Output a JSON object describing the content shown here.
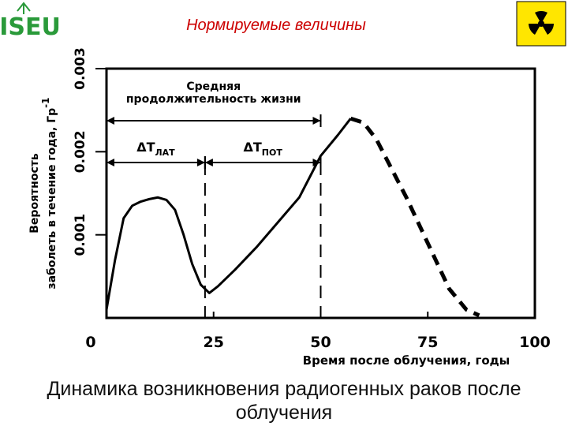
{
  "header": {
    "title": "Нормируемые величины",
    "logo": "ISEU"
  },
  "chart_data": {
    "type": "line",
    "x": [
      0,
      2,
      4,
      6,
      8,
      10,
      12,
      14,
      16,
      18,
      20,
      22,
      24,
      26,
      30,
      35,
      40,
      45,
      50,
      54,
      57,
      60,
      63,
      66,
      70,
      75,
      80,
      84,
      87
    ],
    "series": [
      {
        "style": "solid",
        "color": "#000000",
        "values": [
          0.0001,
          0.0007,
          0.0012,
          0.00135,
          0.0014,
          0.00143,
          0.00145,
          0.00142,
          0.0013,
          0.001,
          0.00065,
          0.0004,
          0.0003,
          0.00038,
          0.00058,
          0.00085,
          0.00115,
          0.00145,
          0.00195,
          0.0022,
          0.0024,
          null,
          null,
          null,
          null,
          null,
          null,
          null,
          null
        ]
      },
      {
        "style": "dashed",
        "color": "#000000",
        "values": [
          null,
          null,
          null,
          null,
          null,
          null,
          null,
          null,
          null,
          null,
          null,
          null,
          null,
          null,
          null,
          null,
          null,
          null,
          null,
          null,
          0.0024,
          0.00235,
          0.00215,
          0.00185,
          0.00145,
          0.0009,
          0.00035,
          0.0001,
          3e-05
        ]
      }
    ],
    "xlim": [
      0,
      100
    ],
    "xticks": [
      0,
      25,
      50,
      75,
      100
    ],
    "ylim": [
      0,
      0.003
    ],
    "yticks": [
      0.001,
      0.002,
      0.003
    ],
    "xlabel": "Время после облучения, годы",
    "ylabel": [
      "Вероятность",
      "заболеть в течение года, Гр"
    ],
    "ylabel_sup": "-1",
    "annotations": [
      {
        "text": [
          "Средняя",
          "продолжительность жизни"
        ],
        "x": [
          0,
          50
        ]
      },
      {
        "text": "ΔT",
        "sub": "ЛАТ",
        "x": [
          0,
          23
        ]
      },
      {
        "text": "ΔT",
        "sub": "ПОТ",
        "x": [
          23,
          50
        ]
      }
    ]
  },
  "caption": "Динамика возникновения радиогенных раков после облучения"
}
